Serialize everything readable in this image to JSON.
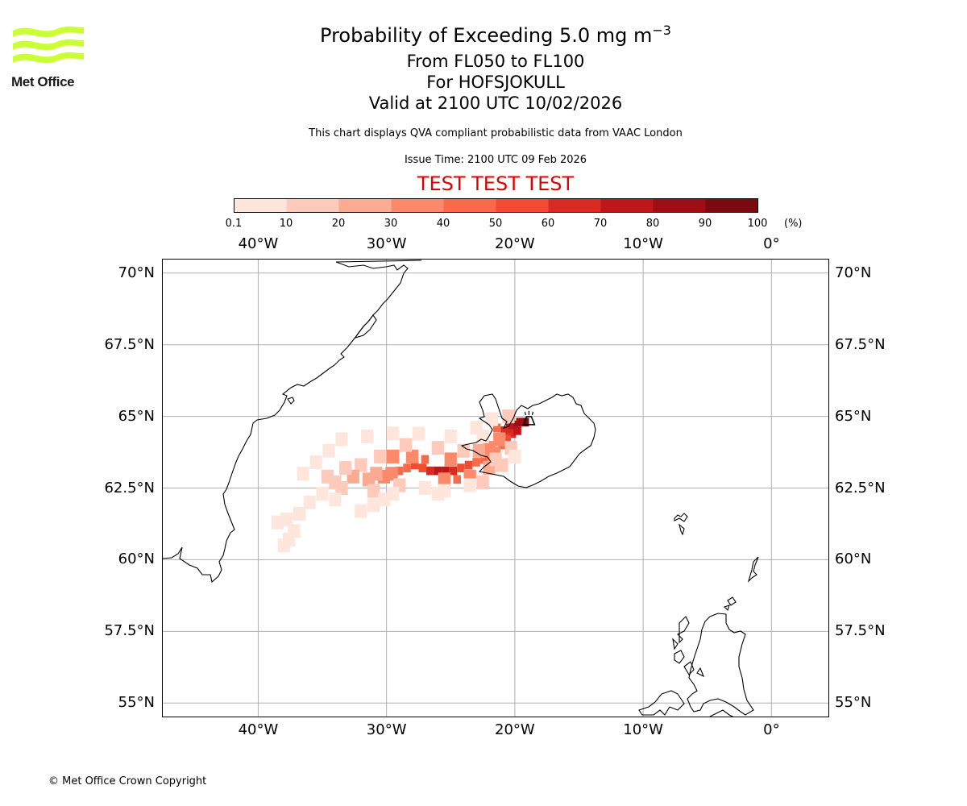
{
  "title": {
    "main": "Probability of Exceeding 5.0 mg m",
    "sup": "−3",
    "levels": "From FL050 to FL100",
    "volcano_line": "For HOFSJOKULL",
    "valid": "Valid at 2100 UTC 10/02/2026"
  },
  "subtitle": "This chart displays QVA compliant probabilistic data from VAAC London",
  "issue_time": "Issue Time: 2100 UTC 09 Feb 2026",
  "test_banner": "TEST TEST TEST",
  "logo": {
    "name": "Met Office",
    "color": "#ccff33"
  },
  "copyright": "© Met Office Crown Copyright",
  "colorbar": {
    "unit": "(%)",
    "ticks": [
      "0.1",
      "10",
      "20",
      "30",
      "40",
      "50",
      "60",
      "70",
      "80",
      "90",
      "100"
    ],
    "colors": [
      "#fee6dd",
      "#fdcabb",
      "#fcab93",
      "#fc8a6a",
      "#f96a4a",
      "#f34a34",
      "#da2b22",
      "#bd1719",
      "#9c0f14",
      "#7a0a0d",
      "#5a0a06"
    ]
  },
  "axes": {
    "lon_ticks": [
      {
        "value": -40,
        "label": "40°W"
      },
      {
        "value": -30,
        "label": "30°W"
      },
      {
        "value": -20,
        "label": "20°W"
      },
      {
        "value": -10,
        "label": "10°W"
      },
      {
        "value": 0,
        "label": "0°"
      }
    ],
    "lat_ticks": [
      {
        "value": 70,
        "label": "70°N"
      },
      {
        "value": 67.5,
        "label": "67.5°N"
      },
      {
        "value": 65,
        "label": "65°N"
      },
      {
        "value": 62.5,
        "label": "62.5°N"
      },
      {
        "value": 60,
        "label": "60°N"
      },
      {
        "value": 57.5,
        "label": "57.5°N"
      },
      {
        "value": 55,
        "label": "55°N"
      }
    ],
    "lon_range": [
      -47.5,
      4.5
    ],
    "lat_range": [
      54.5,
      70.5
    ]
  },
  "volcano": {
    "name": "HOFSJOKULL",
    "lon": -18.9,
    "lat": 64.85
  },
  "plume_cells": [
    {
      "lon": -19.2,
      "lat": 64.8,
      "p": 95
    },
    {
      "lon": -19.6,
      "lat": 64.8,
      "p": 88
    },
    {
      "lon": -20.0,
      "lat": 64.7,
      "p": 82
    },
    {
      "lon": -20.4,
      "lat": 64.6,
      "p": 75
    },
    {
      "lon": -20.8,
      "lat": 64.5,
      "p": 68
    },
    {
      "lon": -20.2,
      "lat": 64.4,
      "p": 62
    },
    {
      "lon": -20.6,
      "lat": 64.2,
      "p": 55
    },
    {
      "lon": -21.0,
      "lat": 64.0,
      "p": 45
    },
    {
      "lon": -19.8,
      "lat": 64.5,
      "p": 70
    },
    {
      "lon": -21.4,
      "lat": 64.6,
      "p": 40
    },
    {
      "lon": -21.2,
      "lat": 64.2,
      "p": 35
    },
    {
      "lon": -22.0,
      "lat": 63.9,
      "p": 30
    },
    {
      "lon": -21.6,
      "lat": 63.7,
      "p": 38
    },
    {
      "lon": -22.4,
      "lat": 63.5,
      "p": 45
    },
    {
      "lon": -23.0,
      "lat": 63.4,
      "p": 48
    },
    {
      "lon": -23.6,
      "lat": 63.3,
      "p": 55
    },
    {
      "lon": -24.2,
      "lat": 63.2,
      "p": 58
    },
    {
      "lon": -24.8,
      "lat": 63.1,
      "p": 62
    },
    {
      "lon": -25.4,
      "lat": 63.1,
      "p": 75
    },
    {
      "lon": -26.0,
      "lat": 63.1,
      "p": 70
    },
    {
      "lon": -26.6,
      "lat": 63.1,
      "p": 65
    },
    {
      "lon": -27.2,
      "lat": 63.2,
      "p": 58
    },
    {
      "lon": -27.8,
      "lat": 63.3,
      "p": 52
    },
    {
      "lon": -28.4,
      "lat": 63.2,
      "p": 45
    },
    {
      "lon": -29.0,
      "lat": 63.1,
      "p": 42
    },
    {
      "lon": -29.6,
      "lat": 63.0,
      "p": 38
    },
    {
      "lon": -30.2,
      "lat": 62.9,
      "p": 32
    },
    {
      "lon": -30.8,
      "lat": 63.0,
      "p": 28
    },
    {
      "lon": -31.4,
      "lat": 62.8,
      "p": 25
    },
    {
      "lon": -24.5,
      "lat": 62.8,
      "p": 45
    },
    {
      "lon": -23.5,
      "lat": 62.9,
      "p": 35
    },
    {
      "lon": -25.5,
      "lat": 62.8,
      "p": 30
    },
    {
      "lon": -27.0,
      "lat": 63.5,
      "p": 42
    },
    {
      "lon": -28.0,
      "lat": 63.6,
      "p": 35
    },
    {
      "lon": -29.5,
      "lat": 63.6,
      "p": 30
    },
    {
      "lon": -25.0,
      "lat": 63.5,
      "p": 35
    },
    {
      "lon": -22.8,
      "lat": 63.8,
      "p": 22
    },
    {
      "lon": -24.0,
      "lat": 63.8,
      "p": 15
    },
    {
      "lon": -26.0,
      "lat": 63.9,
      "p": 12
    },
    {
      "lon": -28.5,
      "lat": 64.0,
      "p": 15
    },
    {
      "lon": -30.5,
      "lat": 63.6,
      "p": 12
    },
    {
      "lon": -32.0,
      "lat": 63.3,
      "p": 10
    },
    {
      "lon": -32.6,
      "lat": 62.9,
      "p": 22
    },
    {
      "lon": -33.2,
      "lat": 63.2,
      "p": 12
    },
    {
      "lon": -34.0,
      "lat": 62.7,
      "p": 15
    },
    {
      "lon": -34.6,
      "lat": 62.9,
      "p": 14
    },
    {
      "lon": -33.5,
      "lat": 62.5,
      "p": 10
    },
    {
      "lon": -31.0,
      "lat": 62.4,
      "p": 10
    },
    {
      "lon": -29.0,
      "lat": 62.6,
      "p": 12
    },
    {
      "lon": -27.0,
      "lat": 62.5,
      "p": 8
    },
    {
      "lon": -25.5,
      "lat": 62.4,
      "p": 8
    },
    {
      "lon": -22.5,
      "lat": 62.7,
      "p": 10
    },
    {
      "lon": -22.0,
      "lat": 63.2,
      "p": 22
    },
    {
      "lon": -21.5,
      "lat": 63.5,
      "p": 18
    },
    {
      "lon": -20.3,
      "lat": 63.9,
      "p": 12
    },
    {
      "lon": -20.0,
      "lat": 63.6,
      "p": 8
    },
    {
      "lon": -25.0,
      "lat": 64.3,
      "p": 6
    },
    {
      "lon": -27.5,
      "lat": 64.4,
      "p": 6
    },
    {
      "lon": -29.5,
      "lat": 64.4,
      "p": 6
    },
    {
      "lon": -31.5,
      "lat": 64.3,
      "p": 5
    },
    {
      "lon": -33.5,
      "lat": 64.2,
      "p": 5
    },
    {
      "lon": -34.5,
      "lat": 63.8,
      "p": 5
    },
    {
      "lon": -35.5,
      "lat": 63.4,
      "p": 5
    },
    {
      "lon": -36.5,
      "lat": 63.0,
      "p": 5
    },
    {
      "lon": -35.0,
      "lat": 62.3,
      "p": 6
    },
    {
      "lon": -34.0,
      "lat": 62.1,
      "p": 5
    },
    {
      "lon": -36.0,
      "lat": 62.0,
      "p": 5
    },
    {
      "lon": -36.8,
      "lat": 61.6,
      "p": 5
    },
    {
      "lon": -37.8,
      "lat": 61.4,
      "p": 5
    },
    {
      "lon": -38.5,
      "lat": 61.3,
      "p": 5
    },
    {
      "lon": -37.2,
      "lat": 61.0,
      "p": 5
    },
    {
      "lon": -37.6,
      "lat": 60.7,
      "p": 5
    },
    {
      "lon": -38.0,
      "lat": 60.5,
      "p": 5
    },
    {
      "lon": -32.0,
      "lat": 61.7,
      "p": 5
    },
    {
      "lon": -31.0,
      "lat": 61.9,
      "p": 6
    },
    {
      "lon": -30.2,
      "lat": 62.1,
      "p": 5
    },
    {
      "lon": -29.5,
      "lat": 62.3,
      "p": 5
    },
    {
      "lon": -26.0,
      "lat": 62.3,
      "p": 5
    },
    {
      "lon": -23.5,
      "lat": 62.6,
      "p": 6
    },
    {
      "lon": -21.0,
      "lat": 63.3,
      "p": 10
    },
    {
      "lon": -23.0,
      "lat": 64.6,
      "p": 5
    },
    {
      "lon": -21.8,
      "lat": 64.9,
      "p": 8
    },
    {
      "lon": -20.5,
      "lat": 65.0,
      "p": 10
    },
    {
      "lon": -22.5,
      "lat": 64.3,
      "p": 8
    }
  ]
}
